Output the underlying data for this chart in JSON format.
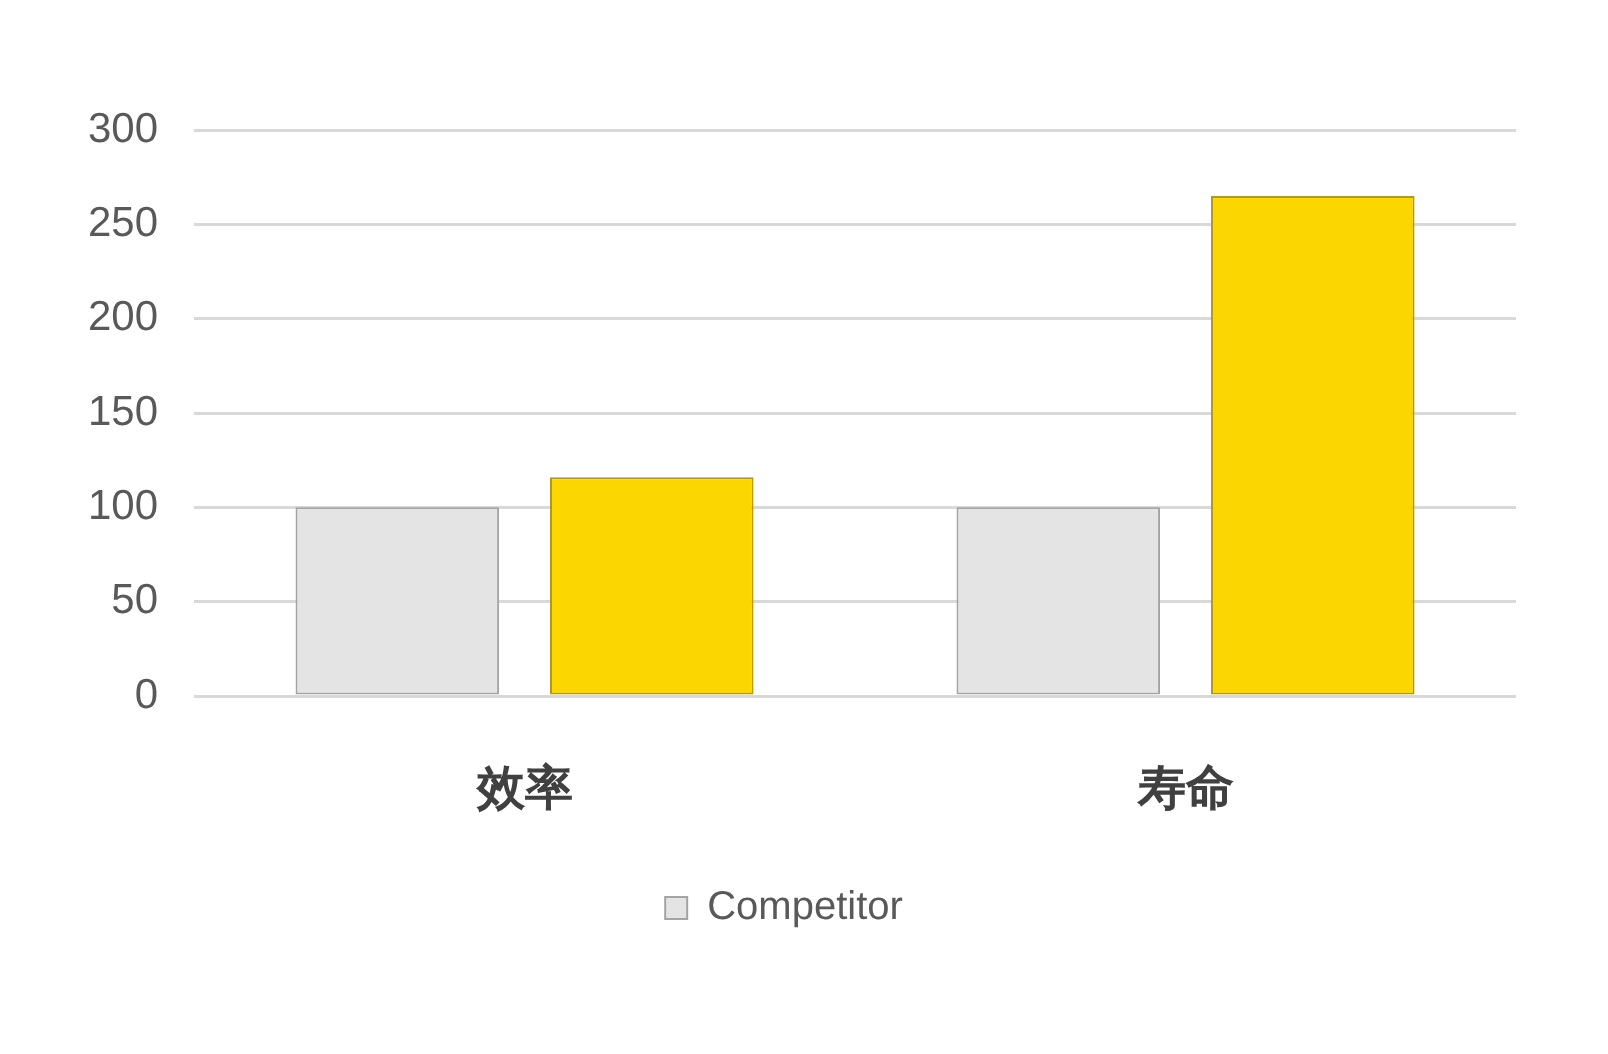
{
  "chart_data": {
    "type": "bar",
    "categories": [
      "效率",
      "寿命"
    ],
    "series": [
      {
        "name": "Competitor",
        "color": "#e4e4e4",
        "values": [
          100,
          100
        ]
      },
      {
        "color": "#fcd600",
        "values": [
          116,
          265
        ]
      }
    ],
    "ylim": [
      0,
      300
    ],
    "yticks": [
      0,
      50,
      100,
      150,
      200,
      250,
      300
    ],
    "grid": "y",
    "legend": "bottom"
  }
}
